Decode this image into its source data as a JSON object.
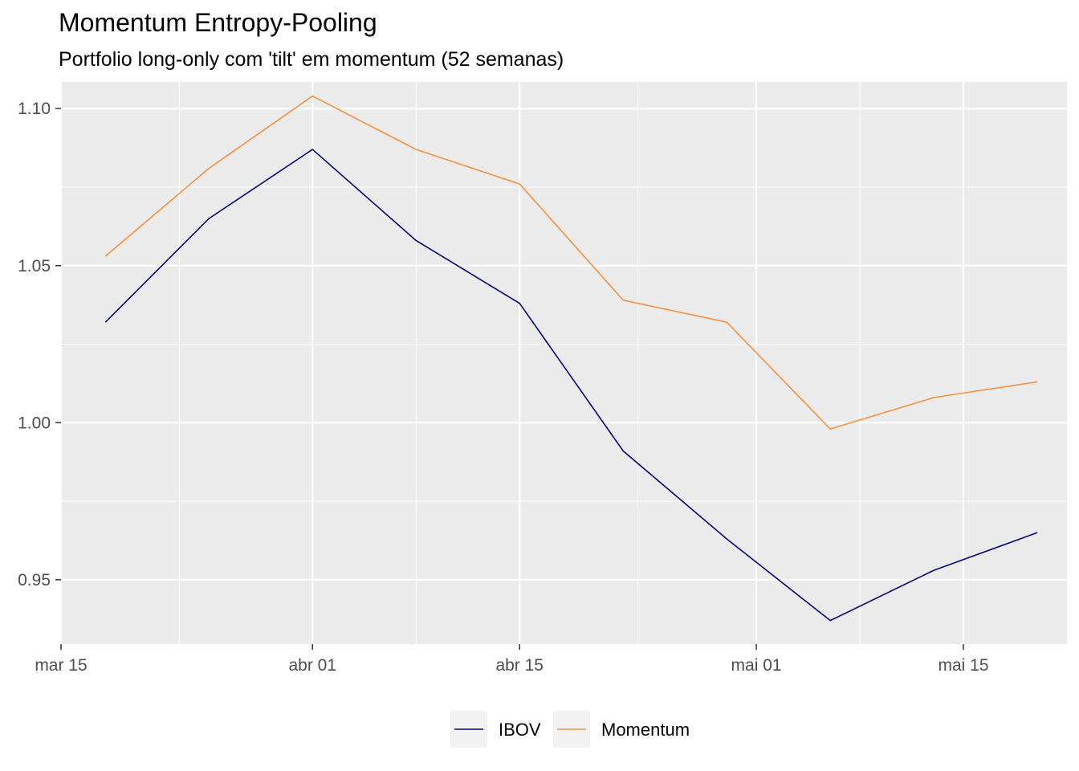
{
  "chart_data": {
    "type": "line",
    "title": "Momentum Entropy-Pooling",
    "subtitle": "Portfolio long-only com 'tilt' em momentum (52 semanas)",
    "xlabel": "",
    "ylabel": "",
    "x": [
      "2024-03-18",
      "2024-03-25",
      "2024-04-01",
      "2024-04-08",
      "2024-04-15",
      "2024-04-22",
      "2024-04-29",
      "2024-05-06",
      "2024-05-13",
      "2024-05-20"
    ],
    "x_ticks": [
      {
        "date": "2024-03-15",
        "label": "mar 15"
      },
      {
        "date": "2024-04-01",
        "label": "abr 01"
      },
      {
        "date": "2024-04-15",
        "label": "abr 15"
      },
      {
        "date": "2024-05-01",
        "label": "mai 01"
      },
      {
        "date": "2024-05-15",
        "label": "mai 15"
      }
    ],
    "x_minor_ticks": [
      "2024-03-23",
      "2024-04-08",
      "2024-04-23",
      "2024-05-08"
    ],
    "xlim": [
      "2024-03-15",
      "2024-05-22"
    ],
    "y_ticks": [
      0.95,
      1.0,
      1.05,
      1.1
    ],
    "y_tick_labels": [
      "0.95",
      "1.00",
      "1.05",
      "1.10"
    ],
    "y_minor_ticks": [
      0.975,
      1.025,
      1.075
    ],
    "ylim": [
      0.9295,
      1.1085
    ],
    "grid": true,
    "legend_position": "bottom",
    "series": [
      {
        "name": "IBOV",
        "color": "#000080",
        "values": [
          1.032,
          1.065,
          1.087,
          1.058,
          1.038,
          0.991,
          0.963,
          0.937,
          0.953,
          0.965
        ]
      },
      {
        "name": "Momentum",
        "color": "#f7913d",
        "values": [
          1.053,
          1.081,
          1.104,
          1.087,
          1.076,
          1.039,
          1.032,
          0.998,
          1.008,
          1.013
        ]
      }
    ]
  },
  "colors": {
    "panel_background": "#ebebeb",
    "grid_line": "#ffffff",
    "legend_key_background": "#f2f2f2"
  }
}
